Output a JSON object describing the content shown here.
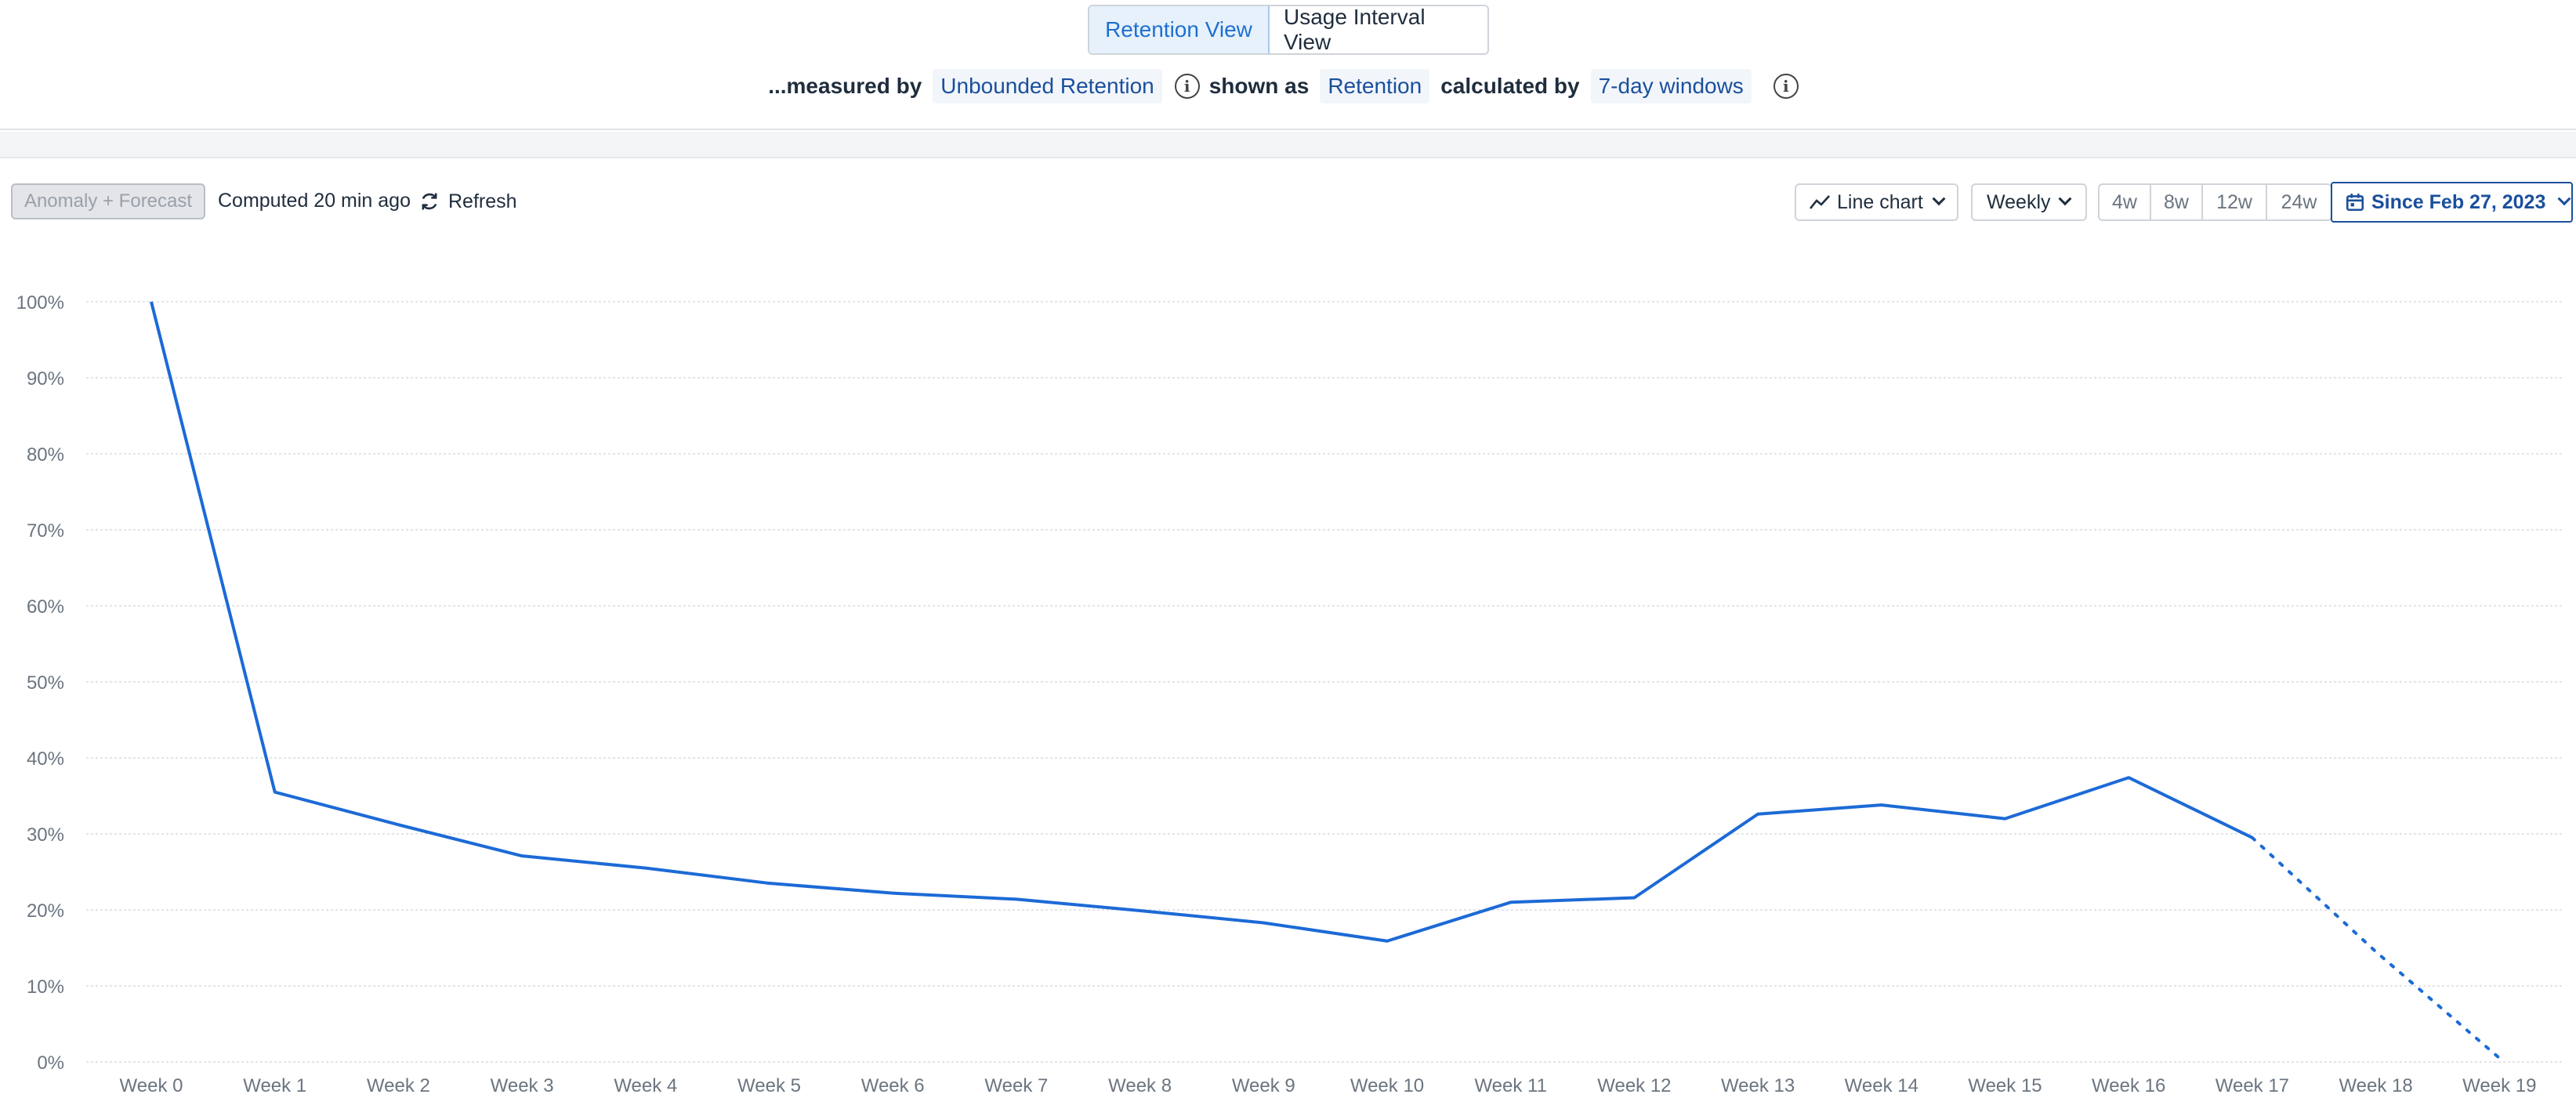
{
  "view_toggle": {
    "retention": "Retention View",
    "usage": "Usage Interval View"
  },
  "measure": {
    "prefix": "...measured by",
    "measure_value": "Unbounded Retention",
    "shown_as_label": "shown as",
    "shown_as_value": "Retention",
    "calc_label": "calculated by",
    "calc_value": "7-day windows"
  },
  "toolbar": {
    "anomaly": "Anomaly + Forecast",
    "computed": "Computed 20 min ago",
    "refresh": "Refresh",
    "chart_type": "Line chart",
    "interval": "Weekly",
    "ranges": [
      "4w",
      "8w",
      "12w",
      "24w"
    ],
    "date_range": "Since Feb 27, 2023"
  },
  "colors": {
    "line": "#1c6ad6",
    "accent": "#1a4f9c",
    "grid": "#d8dbe0"
  },
  "chart_data": {
    "type": "line",
    "categories": [
      "Week 0",
      "Week 1",
      "Week 2",
      "Week 3",
      "Week 4",
      "Week 5",
      "Week 6",
      "Week 7",
      "Week 8",
      "Week 9",
      "Week 10",
      "Week 11",
      "Week 12",
      "Week 13",
      "Week 14",
      "Week 15",
      "Week 16",
      "Week 17",
      "Week 18",
      "Week 19"
    ],
    "y_ticks": [
      "0%",
      "10%",
      "20%",
      "30%",
      "40%",
      "50%",
      "60%",
      "70%",
      "80%",
      "90%",
      "100%"
    ],
    "ylim": [
      0,
      100
    ],
    "series": [
      {
        "values": [
          100,
          35.5,
          31.2,
          27.1,
          25.5,
          23.5,
          22.2,
          21.4,
          19.9,
          18.3,
          15.9,
          21.0,
          21.6,
          32.6,
          33.8,
          32.0,
          37.4,
          29.5,
          null,
          null
        ],
        "style": "solid"
      },
      {
        "values": [
          null,
          null,
          null,
          null,
          null,
          null,
          null,
          null,
          null,
          null,
          null,
          null,
          null,
          null,
          null,
          null,
          null,
          29.5,
          14.5,
          0.5
        ],
        "style": "dotted"
      }
    ],
    "grid": true
  }
}
